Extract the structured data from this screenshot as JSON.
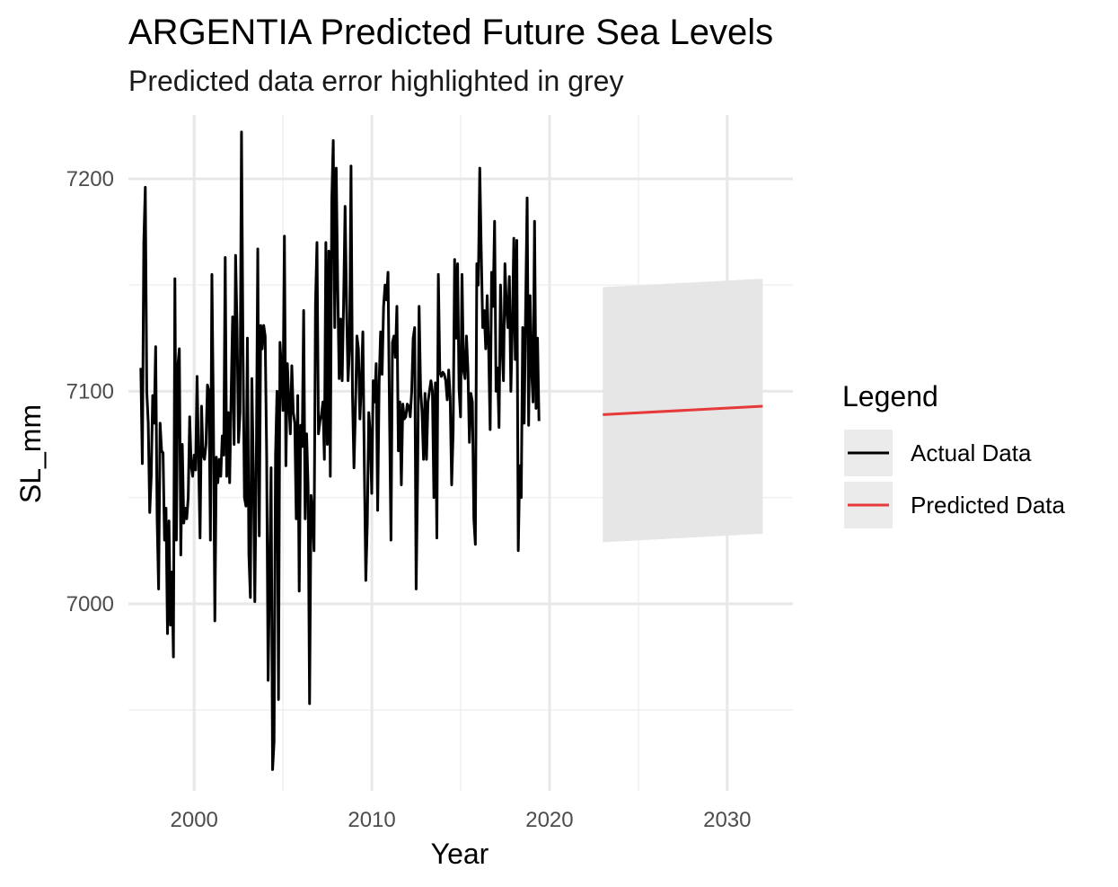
{
  "chart_data": {
    "type": "line",
    "title": "ARGENTIA Predicted Future Sea Levels",
    "subtitle": "Predicted data error highlighted in grey",
    "xlabel": "Year",
    "ylabel": "SL_mm",
    "xlim": [
      1996.3,
      2033.7
    ],
    "ylim": [
      6912,
      7230
    ],
    "x_ticks": [
      2000,
      2010,
      2020,
      2030
    ],
    "x_tick_labels": [
      "2000",
      "2010",
      "2020",
      "2030"
    ],
    "y_ticks": [
      7000,
      7100,
      7200
    ],
    "y_tick_labels": [
      "7000",
      "7100",
      "7200"
    ],
    "grid": true,
    "legend": {
      "title": "Legend",
      "position": "right",
      "entries": [
        {
          "label": "Actual Data",
          "color": "#000000"
        },
        {
          "label": "Predicted Data",
          "color": "#e63a3a"
        }
      ]
    },
    "series": [
      {
        "name": "Actual Data",
        "color": "#000000",
        "x_start": 1997.0,
        "x_step": 0.0833,
        "values": [
          7111,
          7066,
          7170,
          7196,
          7100,
          7085,
          7043,
          7060,
          7098,
          7085,
          7121,
          7040,
          7007,
          7085,
          7072,
          7071,
          7030,
          7045,
          6986,
          7039,
          6990,
          7015,
          6975,
          7153,
          7030,
          7112,
          7120,
          7023,
          7075,
          7038,
          7045,
          7040,
          7050,
          7088,
          7065,
          7060,
          7070,
          7063,
          7107,
          7068,
          7031,
          7093,
          7070,
          7068,
          7075,
          7103,
          7100,
          7030,
          7155,
          7090,
          6992,
          7069,
          7057,
          7068,
          7060,
          7079,
          7070,
          7163,
          7060,
          7090,
          7057,
          7098,
          7135,
          7075,
          7164,
          7130,
          7076,
          7090,
          7222,
          7120,
          7050,
          7046,
          7125,
          7023,
          7003,
          7106,
          7063,
          7001,
          7066,
          7167,
          7032,
          7131,
          7120,
          7131,
          7126,
          7070,
          6964,
          7015,
          7064,
          6922,
          6935,
          7070,
          7100,
          6955,
          7123,
          7110,
          7091,
          7173,
          7065,
          7113,
          7095,
          7080,
          7112,
          7090,
          7085,
          7040,
          7098,
          7006,
          7084,
          7074,
          7138,
          7040,
          7080,
          7055,
          6953,
          7051,
          7043,
          7025,
          7141,
          7170,
          7080,
          7086,
          7089,
          7095,
          7068,
          7170,
          7075,
          7166,
          7060,
          7190,
          7218,
          7130,
          7205,
          7150,
          7106,
          7134,
          7105,
          7142,
          7187,
          7140,
          7105,
          7120,
          7206,
          7098,
          7064,
          7092,
          7126,
          7120,
          7087,
          7104,
          7128,
          7065,
          7011,
          7038,
          7090,
          7080,
          7052,
          7105,
          7095,
          7113,
          7044,
          7104,
          7128,
          7108,
          7140,
          7150,
          7143,
          7156,
          7090,
          7030,
          7123,
          7126,
          7116,
          7140,
          7072,
          7095,
          7056,
          7094,
          7087,
          7088,
          7094,
          7093,
          7088,
          7100,
          7125,
          7130,
          7007,
          7060,
          7140,
          7101,
          7090,
          7068,
          7099,
          7068,
          7095,
          7100,
          7105,
          7100,
          7050,
          7104,
          7031,
          7155,
          7109,
          7107,
          7109,
          7108,
          7105,
          7096,
          7110,
          7097,
          7056,
          7081,
          7162,
          7125,
          7160,
          7101,
          7088,
          7155,
          7110,
          7106,
          7126,
          7110,
          7076,
          7099,
          7095,
          7040,
          7028,
          7160,
          7150,
          7205,
          7165,
          7130,
          7138,
          7120,
          7145,
          7120,
          7082,
          7156,
          7140,
          7180,
          7100,
          7111,
          7083,
          7150,
          7122,
          7105,
          7160,
          7140,
          7130,
          7154,
          7100,
          7130,
          7172,
          7115,
          7171,
          7025,
          7065,
          7050,
          7130,
          7085,
          7140,
          7191,
          7084,
          7145,
          7110,
          7095,
          7180,
          7092,
          7125,
          7086
        ]
      },
      {
        "name": "Predicted Data",
        "color": "#e63a3a",
        "x": [
          2023.0,
          2032.0
        ],
        "values": [
          7089,
          7093
        ]
      }
    ],
    "prediction_interval": {
      "x": [
        2023.0,
        2032.0
      ],
      "upper": [
        7149,
        7153
      ],
      "lower": [
        7029,
        7033
      ],
      "color": "#e6e6e6"
    }
  }
}
